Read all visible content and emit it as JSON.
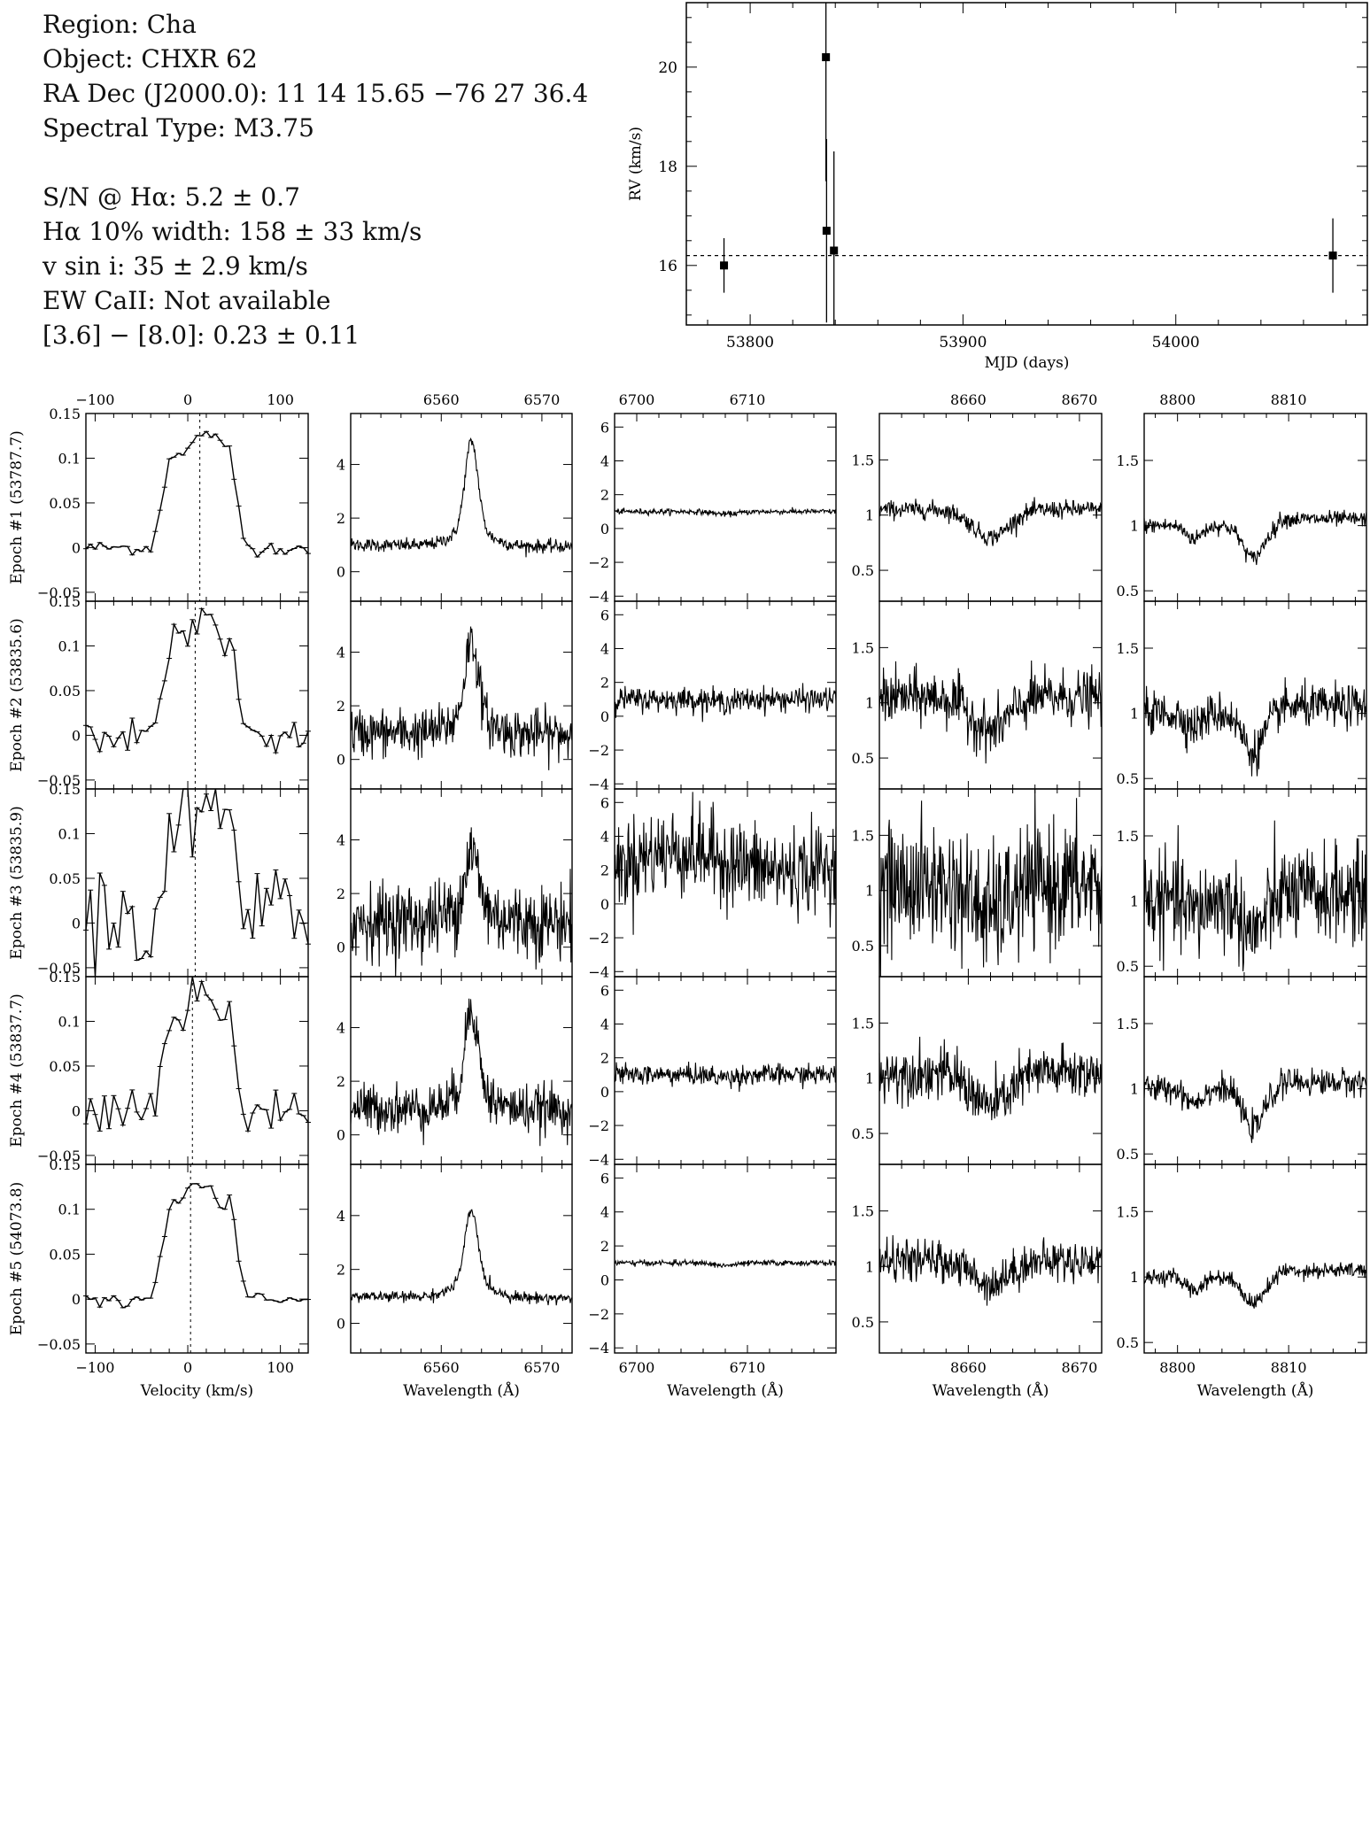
{
  "info": {
    "region": "Region: Cha",
    "object": "Object: CHXR 62",
    "radec": "RA Dec (J2000.0): 11 14 15.65 −76 27 36.4",
    "sptype": "Spectral Type: M3.75",
    "sn": "S/N @ Hα: 5.2 ± 0.7",
    "width": "Hα 10% width: 158 ± 33 km/s",
    "vsini": "v sin i: 35 ± 2.9 km/s",
    "ewcaii": "EW CaII: Not available",
    "irac": "[3.6] − [8.0]: 0.23 ± 0.11"
  },
  "chart_data": [
    {
      "type": "scatter",
      "xlabel": "MJD (days)",
      "ylabel": "RV (km/s)",
      "xlim": [
        53770,
        54090
      ],
      "ylim": [
        14.8,
        21.3
      ],
      "xticks": [
        53800,
        53900,
        54000
      ],
      "yticks": [
        16,
        18,
        20
      ],
      "mean_rv": 16.2,
      "points": [
        {
          "x": 53787.7,
          "y": 16.0,
          "err": 0.55
        },
        {
          "x": 53835.6,
          "y": 20.2,
          "err": 2.5
        },
        {
          "x": 53835.9,
          "y": 16.7,
          "err": 1.85
        },
        {
          "x": 53837.7,
          "y": 16.3,
          "err": 2.0
        },
        {
          "x": 54073.8,
          "y": 16.2,
          "err": 0.75
        }
      ]
    },
    {
      "type": "line",
      "panel_columns": [
        {
          "xlim": [
            -110,
            130
          ],
          "ylim": [
            -0.06,
            0.15
          ],
          "xticks": [
            -100,
            0,
            100
          ],
          "yticks": [
            -0.05,
            0,
            0.05,
            0.1,
            0.15
          ],
          "ytick_labels": [
            "−0.05",
            "0",
            "0.05",
            "0.1",
            "0.15"
          ],
          "xtick_labels": [
            "−100",
            "0",
            "100"
          ],
          "xlabel": "Velocity (km/s)",
          "top_ticks": [
            "−100",
            "0",
            "100"
          ]
        },
        {
          "xlim": [
            6551,
            6573
          ],
          "ylim": [
            -1.1,
            5.9
          ],
          "xticks": [
            6560,
            6570
          ],
          "yticks": [
            0,
            2,
            4
          ],
          "ytick_labels": [
            "0",
            "2",
            "4"
          ],
          "xtick_labels": [
            "6560",
            "6570"
          ],
          "xlabel": "Wavelength (Å)",
          "top_ticks": [
            "6560",
            "6570"
          ]
        },
        {
          "xlim": [
            6698,
            6718
          ],
          "ylim": [
            -4.3,
            6.8
          ],
          "xticks": [
            6700,
            6710
          ],
          "yticks": [
            -4,
            -2,
            0,
            2,
            4,
            6
          ],
          "ytick_labels": [
            "−4",
            "−2",
            "0",
            "2",
            "4",
            "6"
          ],
          "xtick_labels": [
            "6700",
            "6710"
          ],
          "xlabel": "Wavelength (Å)",
          "top_ticks": [
            "6700",
            "6710"
          ]
        },
        {
          "xlim": [
            8652,
            8672
          ],
          "ylim": [
            0.22,
            1.92
          ],
          "xticks": [
            8660,
            8670
          ],
          "yticks": [
            0.5,
            1,
            1.5
          ],
          "ytick_labels": [
            "0.5",
            "1",
            "1.5"
          ],
          "xtick_labels": [
            "8660",
            "8670"
          ],
          "xlabel": "Wavelength (Å)",
          "top_ticks": [
            "8660",
            "8670"
          ]
        },
        {
          "xlim": [
            8797,
            8817
          ],
          "ylim": [
            0.42,
            1.86
          ],
          "xticks": [
            8800,
            8810
          ],
          "yticks": [
            0.5,
            1,
            1.5
          ],
          "ytick_labels": [
            "0.5",
            "1",
            "1.5"
          ],
          "xtick_labels": [
            "8800",
            "8810"
          ],
          "xlabel": "Wavelength (Å)",
          "top_ticks": [
            "8800",
            "8810"
          ]
        }
      ],
      "epochs": [
        {
          "label": "Epoch #1 (53787.7)",
          "rv_line": 13,
          "noise": [
            0.004,
            0.12,
            0.08,
            0.04,
            0.03
          ],
          "ha_peak": 3.3,
          "ca_dip": 0.25
        },
        {
          "label": "Epoch #2 (53835.6)",
          "rv_line": 8,
          "noise": [
            0.01,
            0.45,
            0.35,
            0.12,
            0.08
          ],
          "ha_peak": 2.9,
          "ca_dip": 0.3
        },
        {
          "label": "Epoch #3 (53835.9)",
          "rv_line": 8,
          "noise": [
            0.035,
            0.7,
            1.3,
            0.28,
            0.18
          ],
          "ha_peak": 2.0,
          "ca_dip": 0.25
        },
        {
          "label": "Epoch #4 (53837.7)",
          "rv_line": 5,
          "noise": [
            0.015,
            0.45,
            0.3,
            0.12,
            0.05
          ],
          "ha_peak": 3.2,
          "ca_dip": 0.3
        },
        {
          "label": "Epoch #5 (54073.8)",
          "rv_line": 3,
          "noise": [
            0.004,
            0.1,
            0.08,
            0.09,
            0.03
          ],
          "ha_peak": 2.6,
          "ca_dip": 0.2
        }
      ]
    }
  ]
}
